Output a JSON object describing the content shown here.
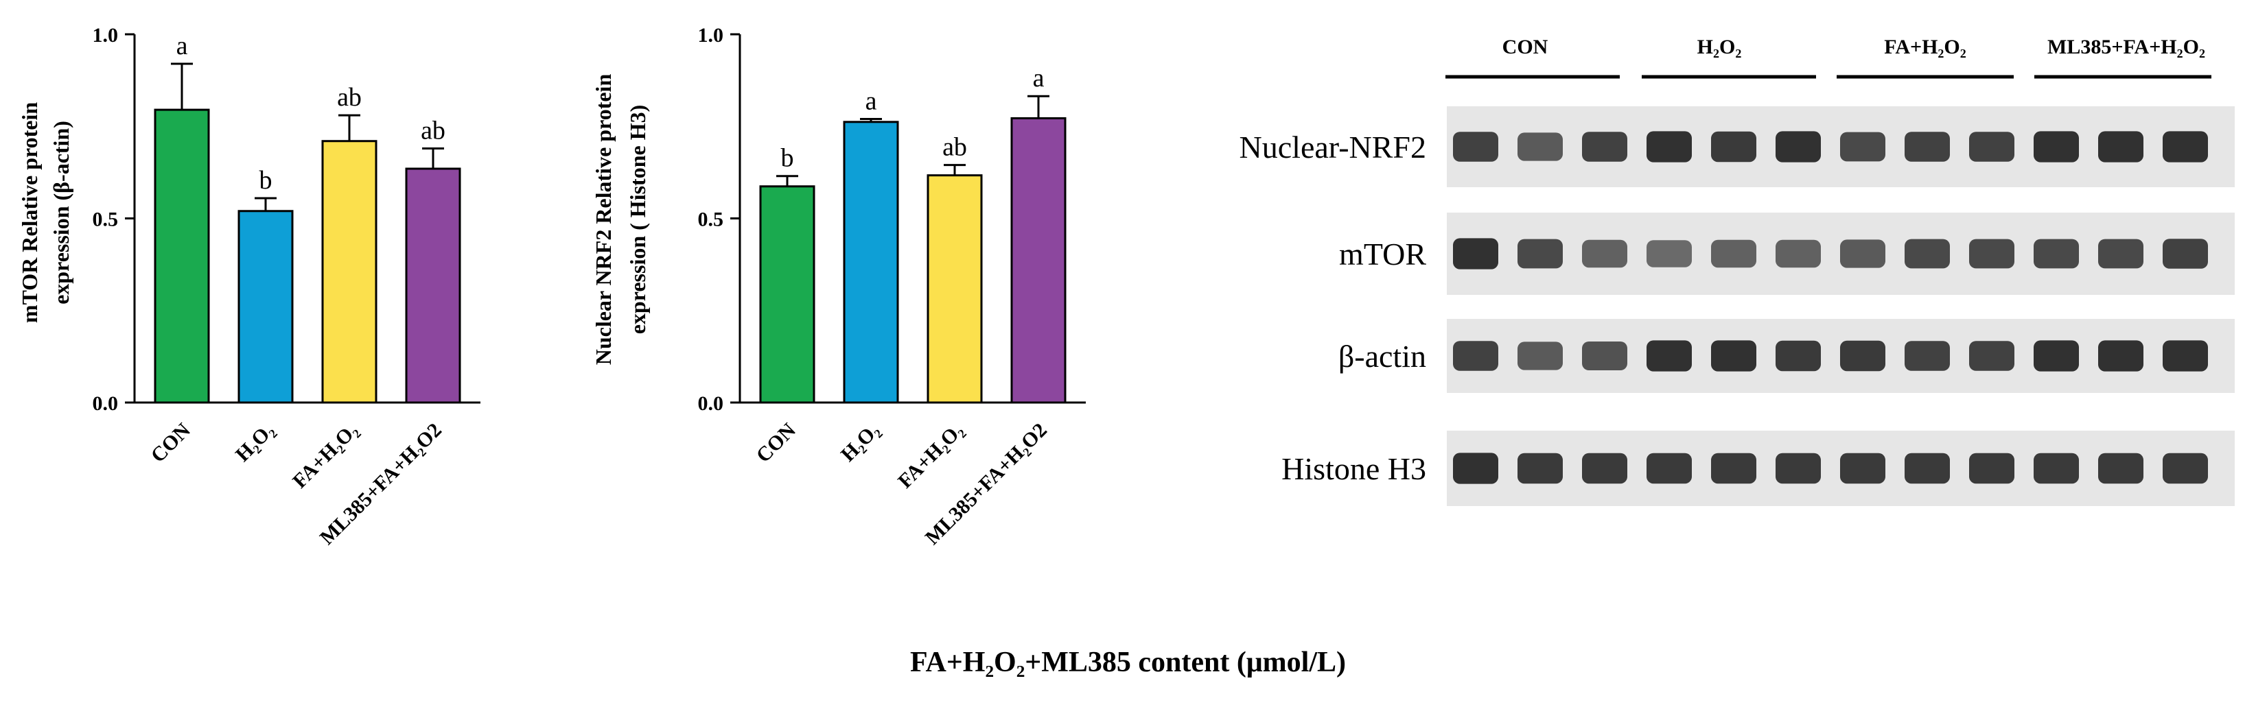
{
  "chart_data": [
    {
      "type": "bar",
      "ylabel_lines": [
        "mTOR Relative protein",
        "expression (β-actin)"
      ],
      "categories": [
        "CON",
        "H₂O₂",
        "FA+H₂O₂",
        "ML385+FA+H₂O2"
      ],
      "values": [
        0.795,
        0.52,
        0.71,
        0.635
      ],
      "errors": [
        0.125,
        0.035,
        0.07,
        0.055
      ],
      "letters": [
        "a",
        "b",
        "ab",
        "ab"
      ],
      "colors": [
        "#1aaa4f",
        "#0e9fd6",
        "#fbe04d",
        "#8c479e"
      ],
      "ylim": [
        0,
        1.0
      ],
      "yticks": [
        0.0,
        0.5,
        1.0
      ],
      "ytick_labels": [
        "0.0",
        "0.5",
        "1.0"
      ],
      "grid": false
    },
    {
      "type": "bar",
      "ylabel_lines": [
        "Nuclear NRF2 Relative protein",
        "expression ( Histone H3)"
      ],
      "categories": [
        "CON",
        "H₂O₂",
        "FA+H₂O₂",
        "ML385+FA+H₂O2"
      ],
      "values": [
        0.587,
        0.762,
        0.617,
        0.772
      ],
      "errors": [
        0.028,
        0.008,
        0.028,
        0.06
      ],
      "letters": [
        "b",
        "a",
        "ab",
        "a"
      ],
      "colors": [
        "#1aaa4f",
        "#0e9fd6",
        "#fbe04d",
        "#8c479e"
      ],
      "ylim": [
        0,
        1.0
      ],
      "yticks": [
        0.0,
        0.5,
        1.0
      ],
      "ytick_labels": [
        "0.0",
        "0.5",
        "1.0"
      ],
      "grid": false
    }
  ],
  "blot": {
    "group_labels": [
      "CON",
      "H₂O₂",
      "FA+H₂O₂",
      "ML385+FA+H₂O₂"
    ],
    "rows": [
      {
        "label": "Nuclear-NRF2",
        "intensity": [
          0.85,
          0.7,
          0.85,
          0.95,
          0.9,
          0.95,
          0.8,
          0.85,
          0.85,
          0.95,
          0.95,
          0.95
        ]
      },
      {
        "label": "mTOR",
        "intensity": [
          0.95,
          0.8,
          0.65,
          0.6,
          0.65,
          0.65,
          0.7,
          0.8,
          0.8,
          0.8,
          0.8,
          0.85
        ]
      },
      {
        "label": "β-actin",
        "intensity": [
          0.85,
          0.7,
          0.75,
          0.95,
          0.95,
          0.9,
          0.9,
          0.85,
          0.85,
          0.95,
          0.95,
          0.95
        ]
      },
      {
        "label": "Histone H3",
        "intensity": [
          0.95,
          0.9,
          0.9,
          0.9,
          0.9,
          0.9,
          0.9,
          0.9,
          0.9,
          0.9,
          0.9,
          0.9
        ]
      }
    ]
  },
  "footer_caption": "FA+H₂O₂+ML385 content (μmol/L)"
}
